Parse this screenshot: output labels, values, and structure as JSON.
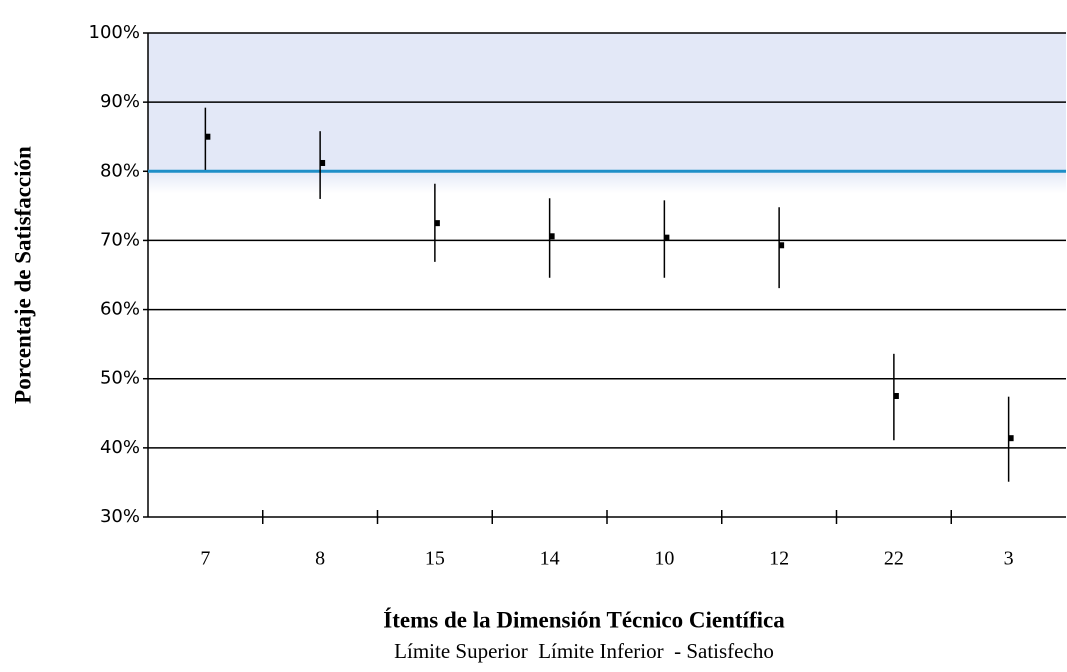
{
  "chart_data": {
    "type": "errorbar",
    "y_label": "Porcentaje de Satisfacción",
    "x_label": "Ítems de la Dimensión Técnico Científica",
    "categories": [
      "7",
      "8",
      "15",
      "14",
      "10",
      "12",
      "22",
      "3"
    ],
    "series": [
      {
        "name": "Límite Superior",
        "color": "#000000",
        "values": [
          89.2,
          85.8,
          78.2,
          76.1,
          75.8,
          74.8,
          53.6,
          47.4
        ]
      },
      {
        "name": "Límite Inferior",
        "color": "#000000",
        "values": [
          80.2,
          76,
          66.9,
          64.6,
          64.6,
          63.1,
          41.1,
          35.1
        ]
      },
      {
        "name": "Satisfecho",
        "color": "#000000",
        "values": [
          85,
          81.2,
          72.5,
          70.6,
          70.4,
          69.3,
          47.5,
          41.4
        ]
      }
    ],
    "ylim": [
      30,
      100
    ],
    "yticks": [
      {
        "value": 30,
        "label": "30%"
      },
      {
        "value": 40,
        "label": "40%"
      },
      {
        "value": 50,
        "label": "50%"
      },
      {
        "value": 60,
        "label": "60%"
      },
      {
        "value": 70,
        "label": "70%"
      },
      {
        "value": 80,
        "label": "80%"
      },
      {
        "value": 90,
        "label": "90%"
      },
      {
        "value": 100,
        "label": "100%"
      }
    ],
    "grid": true,
    "reference_line": 80,
    "reference_color": "#1f8fc8",
    "shaded_range": [
      80,
      100
    ],
    "shaded_color": "#e3e8f7"
  }
}
